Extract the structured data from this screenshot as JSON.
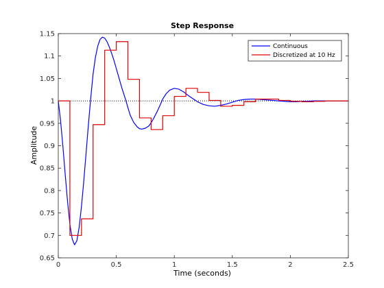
{
  "chart_data": {
    "type": "line",
    "title": "Step Response",
    "xlabel": "Time (seconds)",
    "ylabel": "Amplitude",
    "xlim": [
      0,
      2.5
    ],
    "ylim": [
      0.65,
      1.15
    ],
    "x_ticks": [
      0,
      0.5,
      1,
      1.5,
      2,
      2.5
    ],
    "x_tick_labels": [
      "0",
      "0.5",
      "1",
      "1.5",
      "2",
      "2.5"
    ],
    "y_ticks": [
      0.65,
      0.7,
      0.75,
      0.8,
      0.85,
      0.9,
      0.95,
      1,
      1.05,
      1.1,
      1.15
    ],
    "y_tick_labels": [
      "0.65",
      "0.7",
      "0.75",
      "0.8",
      "0.85",
      "0.9",
      "0.95",
      "1",
      "1.05",
      "1.1",
      "1.15"
    ],
    "grid": false,
    "legend_position": "top-right",
    "reference_line": {
      "y": 1,
      "style": "dotted",
      "color": "#000000"
    },
    "series": [
      {
        "name": "Continuous",
        "style": "line",
        "color": "#0000ff",
        "x": [
          0,
          0.02,
          0.04,
          0.06,
          0.08,
          0.1,
          0.12,
          0.14,
          0.16,
          0.18,
          0.2,
          0.22,
          0.24,
          0.26,
          0.28,
          0.3,
          0.32,
          0.34,
          0.36,
          0.38,
          0.4,
          0.42,
          0.44,
          0.46,
          0.48,
          0.5,
          0.52,
          0.55,
          0.58,
          0.6,
          0.62,
          0.65,
          0.68,
          0.7,
          0.72,
          0.75,
          0.78,
          0.8,
          0.82,
          0.85,
          0.88,
          0.9,
          0.93,
          0.96,
          1,
          1.04,
          1.08,
          1.12,
          1.16,
          1.2,
          1.25,
          1.3,
          1.35,
          1.4,
          1.45,
          1.5,
          1.55,
          1.6,
          1.65,
          1.7,
          1.75,
          1.8,
          1.85,
          1.9,
          1.95,
          2,
          2.05,
          2.1,
          2.15,
          2.2,
          2.25,
          2.3,
          2.35,
          2.4,
          2.45,
          2.5
        ],
        "y": [
          1.0,
          0.955,
          0.898,
          0.835,
          0.775,
          0.725,
          0.692,
          0.679,
          0.688,
          0.718,
          0.765,
          0.822,
          0.885,
          0.948,
          1.007,
          1.06,
          1.097,
          1.122,
          1.137,
          1.142,
          1.14,
          1.132,
          1.12,
          1.106,
          1.09,
          1.072,
          1.054,
          1.027,
          1.003,
          0.985,
          0.968,
          0.952,
          0.942,
          0.938,
          0.937,
          0.939,
          0.944,
          0.951,
          0.96,
          0.975,
          0.992,
          1.004,
          1.016,
          1.024,
          1.028,
          1.026,
          1.02,
          1.012,
          1.005,
          0.998,
          0.992,
          0.989,
          0.988,
          0.99,
          0.993,
          0.997,
          1.001,
          1.003,
          1.004,
          1.004,
          1.003,
          1.002,
          1.001,
          1.0,
          0.999,
          0.998,
          0.998,
          0.999,
          0.999,
          1.0,
          1.0,
          1.0,
          1.0,
          1.0,
          1.0,
          1.0
        ]
      },
      {
        "name": "Discretized at 10 Hz",
        "style": "step",
        "color": "#dd0000",
        "x": [
          0,
          0.1,
          0.2,
          0.3,
          0.4,
          0.5,
          0.6,
          0.7,
          0.8,
          0.9,
          1.0,
          1.1,
          1.2,
          1.3,
          1.4,
          1.5,
          1.6,
          1.7,
          1.8,
          1.9,
          2.0,
          2.1,
          2.2,
          2.3,
          2.4,
          2.5
        ],
        "y": [
          1.0,
          0.7,
          0.737,
          0.947,
          1.113,
          1.132,
          1.048,
          0.962,
          0.936,
          0.967,
          1.01,
          1.028,
          1.019,
          1.001,
          0.988,
          0.99,
          0.998,
          1.004,
          1.004,
          1.001,
          0.999,
          0.998,
          0.999,
          1.0,
          1.0,
          1.0
        ]
      }
    ]
  }
}
